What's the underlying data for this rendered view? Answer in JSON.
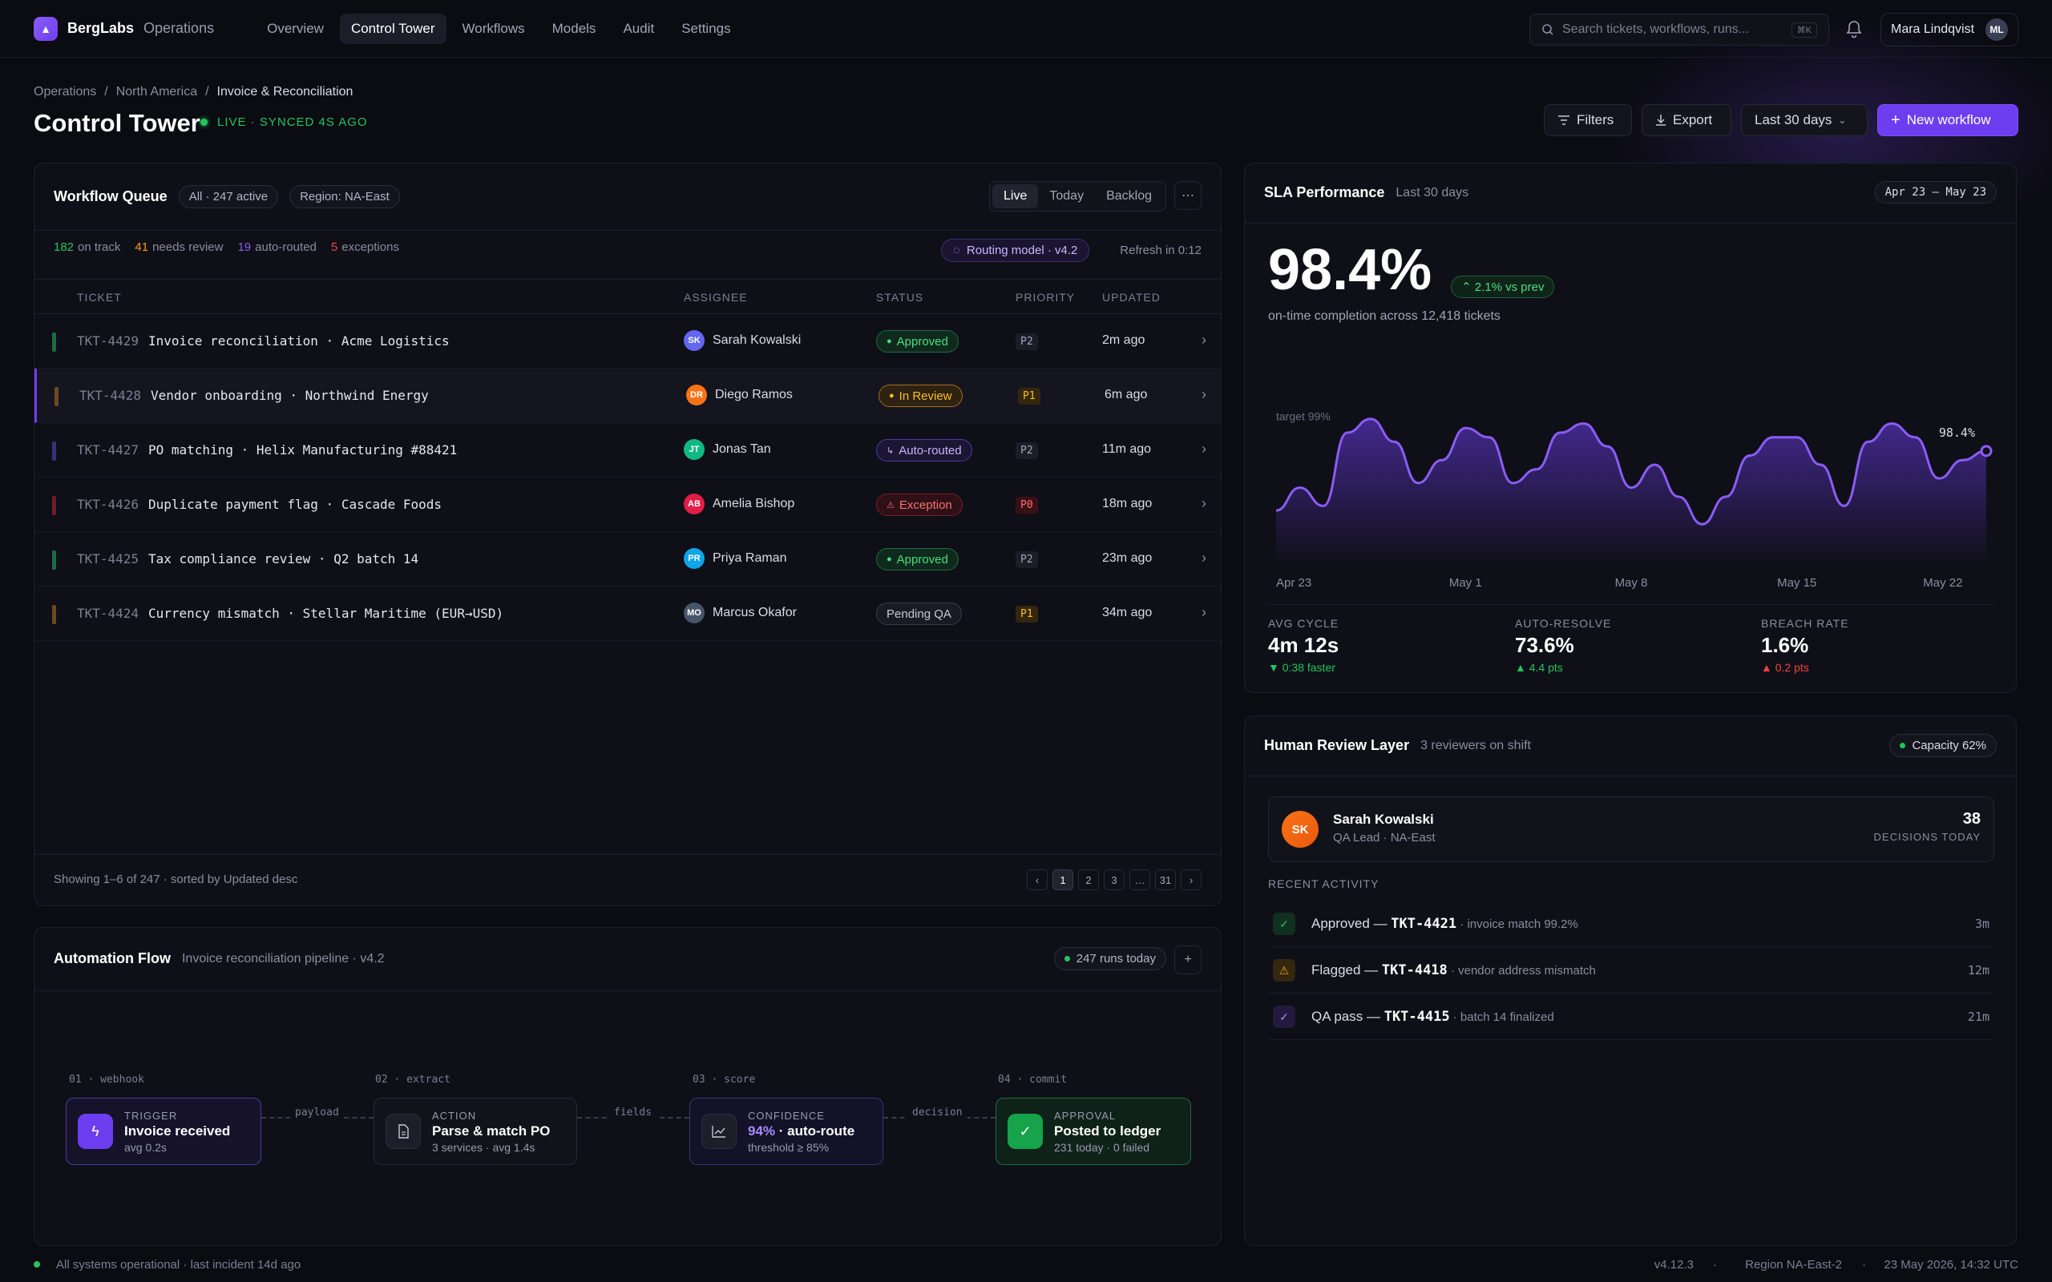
{
  "brand": {
    "name": "BergLabs",
    "section": "Operations"
  },
  "nav": [
    "Overview",
    "Control Tower",
    "Workflows",
    "Models",
    "Audit",
    "Settings"
  ],
  "search": {
    "placeholder": "Search tickets, workflows, runs...",
    "shortcut": "⌘K"
  },
  "user": {
    "name": "Mara Lindqvist",
    "initials": "ML"
  },
  "breadcrumb": [
    "Operations",
    "North America",
    "Invoice & Reconciliation"
  ],
  "page": {
    "title": "Control Tower",
    "live": "LIVE · SYNCED 4S AGO"
  },
  "actions": {
    "filters": "Filters",
    "export": "Export",
    "range": "Last 30 days",
    "new": "New workflow"
  },
  "queue": {
    "title": "Workflow Queue",
    "filter": "All · 247 active",
    "region": "Region: NA-East",
    "views": [
      "Live",
      "Today",
      "Backlog"
    ],
    "stats": [
      {
        "n": "182",
        "label": "on track",
        "color": "#22c55e"
      },
      {
        "n": "41",
        "label": "needs review",
        "color": "#f59e0b"
      },
      {
        "n": "19",
        "label": "auto-routed",
        "color": "#8b5cf6"
      },
      {
        "n": "5",
        "label": "exceptions",
        "color": "#ef4444"
      }
    ],
    "routing": "Routing model · v4.2",
    "refresh": "Refresh in 0:12",
    "columns": [
      "TICKET",
      "ASSIGNEE",
      "STATUS",
      "PRIORITY",
      "UPDATED"
    ],
    "rows": [
      {
        "id": "TKT-4429",
        "desc": "Invoice reconciliation · Acme Logistics",
        "initials": "SK",
        "assignee": "Sarah Kowalski",
        "avatar": "#6366f1",
        "status": "Approved",
        "statusIcon": "●",
        "stype": "ok",
        "prio": "P2",
        "updated": "2m ago",
        "stripe": "#1f6b45"
      },
      {
        "id": "TKT-4428",
        "desc": "Vendor onboarding · Northwind Energy",
        "initials": "DR",
        "assignee": "Diego Ramos",
        "avatar": "#f97316",
        "status": "In Review",
        "statusIcon": "●",
        "stype": "warn",
        "prio": "P1",
        "updated": "6m ago",
        "stripe": "#6b4a1f"
      },
      {
        "id": "TKT-4427",
        "desc": "PO matching · Helix Manufacturing #88421",
        "initials": "JT",
        "assignee": "Jonas Tan",
        "avatar": "#10b981",
        "status": "Auto-routed",
        "statusIcon": "↳",
        "stype": "auto",
        "prio": "P2",
        "updated": "11m ago",
        "stripe": "#3b2f7a"
      },
      {
        "id": "TKT-4426",
        "desc": "Duplicate payment flag · Cascade Foods",
        "initials": "AB",
        "assignee": "Amelia Bishop",
        "avatar": "#e11d48",
        "status": "Exception",
        "statusIcon": "⚠",
        "stype": "err",
        "prio": "P0",
        "updated": "18m ago",
        "stripe": "#6b1f2a"
      },
      {
        "id": "TKT-4425",
        "desc": "Tax compliance review · Q2 batch 14",
        "initials": "PR",
        "assignee": "Priya Raman",
        "avatar": "#0ea5e9",
        "status": "Approved",
        "statusIcon": "●",
        "stype": "ok",
        "prio": "P2",
        "updated": "23m ago",
        "stripe": "#1f6b45"
      },
      {
        "id": "TKT-4424",
        "desc": "Currency mismatch · Stellar Maritime (EUR→USD)",
        "initials": "MO",
        "assignee": "Marcus Okafor",
        "avatar": "#475569",
        "status": "Pending QA",
        "statusIcon": "",
        "stype": "neutral",
        "prio": "P1",
        "updated": "34m ago",
        "stripe": "#6b4a1f"
      }
    ],
    "footer": "Showing 1–6 of 247 · sorted by Updated desc",
    "pages": [
      "‹",
      "1",
      "2",
      "3",
      "…",
      "31",
      "›"
    ]
  },
  "automation": {
    "title": "Automation Flow",
    "subtitle": "Invoice reconciliation pipeline · v4.2",
    "runs": "247 runs today",
    "steps": [
      "01 · webhook",
      "02 · extract",
      "03 · score",
      "04 · commit"
    ],
    "nodes": [
      {
        "kind": "TRIGGER",
        "name": "Invoice received",
        "sub": "avg 0.2s"
      },
      {
        "kind": "ACTION",
        "name": "Parse & match PO",
        "sub": "3 services · avg 1.4s"
      },
      {
        "kind": "CONFIDENCE",
        "name_pct": "94%",
        "name_rest": " · auto-route",
        "sub": "threshold ≥ 85%"
      },
      {
        "kind": "APPROVAL",
        "name": "Posted to ledger",
        "sub": "231 today · 0 failed"
      }
    ],
    "links": [
      "payload",
      "fields",
      "decision"
    ]
  },
  "sla": {
    "title": "SLA Performance",
    "subtitle": "Last 30 days",
    "range": "Apr 23 – May 23",
    "value": "98.4%",
    "delta": "2.1% vs prev",
    "caption": "on-time completion across 12,418 tickets",
    "target": "target 99%",
    "end_label": "98.4%",
    "metrics": [
      {
        "label": "AVG CYCLE",
        "value": "4m 12s",
        "delta": "▼ 0:38 faster",
        "color": "#22c55e"
      },
      {
        "label": "AUTO-RESOLVE",
        "value": "73.6%",
        "delta": "▲ 4.4 pts",
        "color": "#22c55e"
      },
      {
        "label": "BREACH RATE",
        "value": "1.6%",
        "delta": "▲ 0.2 pts",
        "color": "#ef4444"
      }
    ]
  },
  "chart_data": {
    "type": "area",
    "x": [
      "Apr 23",
      "Apr 24",
      "Apr 25",
      "Apr 26",
      "Apr 27",
      "Apr 28",
      "Apr 29",
      "Apr 30",
      "May 1",
      "May 2",
      "May 3",
      "May 4",
      "May 5",
      "May 6",
      "May 7",
      "May 8",
      "May 9",
      "May 10",
      "May 11",
      "May 12",
      "May 13",
      "May 14",
      "May 15",
      "May 16",
      "May 17",
      "May 18",
      "May 19",
      "May 20",
      "May 21",
      "May 22",
      "May 23"
    ],
    "values": [
      97.1,
      97.6,
      97.2,
      98.8,
      99.1,
      98.6,
      97.7,
      98.2,
      98.9,
      98.7,
      97.7,
      98.0,
      98.8,
      99.0,
      98.5,
      97.6,
      98.1,
      97.4,
      96.8,
      97.4,
      98.3,
      98.7,
      98.7,
      98.1,
      97.2,
      98.6,
      99.0,
      98.7,
      97.8,
      98.2,
      98.4
    ],
    "xticks": [
      "Apr 23",
      "May 1",
      "May 8",
      "May 15",
      "May 22"
    ],
    "ylim": [
      96,
      99.5
    ],
    "target": 99
  },
  "review": {
    "title": "Human Review Layer",
    "subtitle": "3 reviewers on shift",
    "capacity": "Capacity 62%",
    "reviewer": {
      "initials": "SK",
      "name": "Sarah Kowalski",
      "role": "QA Lead · NA-East",
      "count": "38",
      "count_label": "DECISIONS TODAY"
    },
    "recent_label": "RECENT ACTIVITY",
    "activity": [
      {
        "icon": "✓",
        "lead": "Approved — ",
        "ticket": "TKT-4421",
        "detail": " · invoice match 99.2%",
        "time": "3m",
        "color": "#22c55e",
        "bg": "#12301f"
      },
      {
        "icon": "⚠",
        "lead": "Flagged — ",
        "ticket": "TKT-4418",
        "detail": " · vendor address mismatch",
        "time": "12m",
        "color": "#f59e0b",
        "bg": "#33270f"
      },
      {
        "icon": "✓",
        "lead": "QA pass — ",
        "ticket": "TKT-4415",
        "detail": " · batch 14 finalized",
        "time": "21m",
        "color": "#a78bfa",
        "bg": "#231a3d"
      }
    ]
  },
  "footer": {
    "status": "All systems operational · last incident 14d ago",
    "version": "v4.12.3",
    "region": "Region NA-East-2",
    "time": "23 May 2026, 14:32 UTC"
  }
}
